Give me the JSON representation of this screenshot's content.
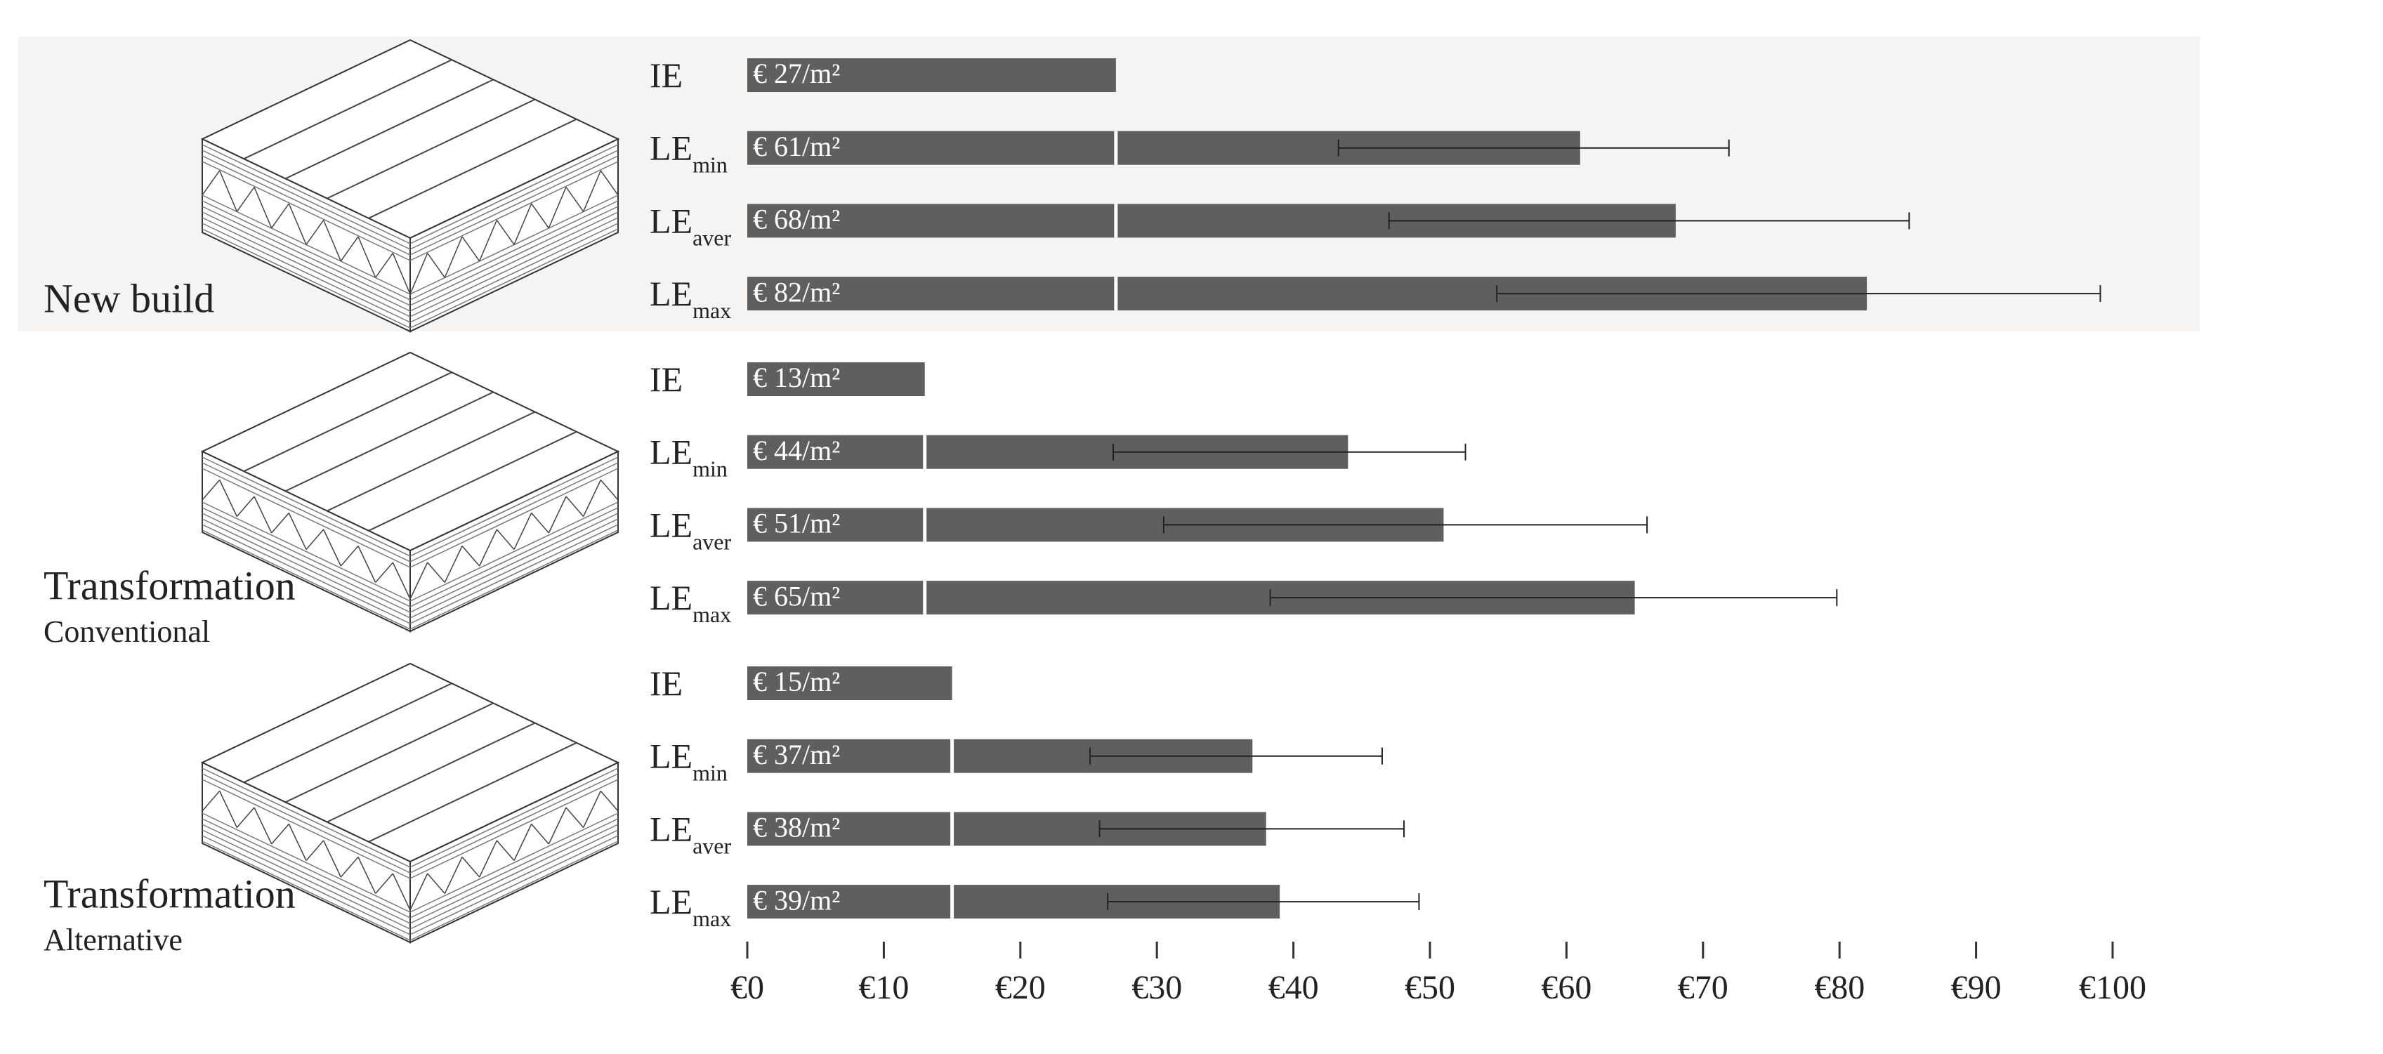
{
  "chart_data": {
    "type": "bar",
    "orientation": "horizontal",
    "color": "#5f5f5f",
    "xlim": [
      0,
      100
    ],
    "xticks": [
      {
        "value": 0,
        "label": "€0"
      },
      {
        "value": 10,
        "label": "€10"
      },
      {
        "value": 20,
        "label": "€20"
      },
      {
        "value": 30,
        "label": "€30"
      },
      {
        "value": 40,
        "label": "€40"
      },
      {
        "value": 50,
        "label": "€50"
      },
      {
        "value": 60,
        "label": "€60"
      },
      {
        "value": 70,
        "label": "€70"
      },
      {
        "value": 80,
        "label": "€80"
      },
      {
        "value": 90,
        "label": "€90"
      },
      {
        "value": 100,
        "label": "€100"
      }
    ],
    "groups": [
      {
        "label": "New build",
        "bars": [
          {
            "label": {
              "base": "IE"
            },
            "value": 27,
            "value_label": "€ 27/m²"
          },
          {
            "label": {
              "base": "LE",
              "sub": "min"
            },
            "value": 61,
            "value_label": "€ 61/m²",
            "error": [
              43.3,
              71.9
            ]
          },
          {
            "label": {
              "base": "LE",
              "sub": "aver"
            },
            "value": 68,
            "value_label": "€ 68/m²",
            "error": [
              47,
              85.1
            ]
          },
          {
            "label": {
              "base": "LE",
              "sub": "max"
            },
            "value": 82,
            "value_label": "€ 82/m²",
            "error": [
              54.9,
              99.1
            ]
          }
        ]
      },
      {
        "label": "Transformation",
        "sublabel": "Conventional",
        "bars": [
          {
            "label": {
              "base": "IE"
            },
            "value": 13,
            "value_label": "€ 13/m²"
          },
          {
            "label": {
              "base": "LE",
              "sub": "min"
            },
            "value": 44,
            "value_label": "€ 44/m²",
            "error": [
              26.8,
              52.6
            ]
          },
          {
            "label": {
              "base": "LE",
              "sub": "aver"
            },
            "value": 51,
            "value_label": "€ 51/m²",
            "error": [
              30.5,
              65.9
            ]
          },
          {
            "label": {
              "base": "LE",
              "sub": "max"
            },
            "value": 65,
            "value_label": "€ 65/m²",
            "error": [
              38.3,
              79.8
            ]
          }
        ]
      },
      {
        "label": "Transformation",
        "sublabel": "Alternative",
        "bars": [
          {
            "label": {
              "base": "IE"
            },
            "value": 15,
            "value_label": "€ 15/m²"
          },
          {
            "label": {
              "base": "LE",
              "sub": "min"
            },
            "value": 37,
            "value_label": "€ 37/m²",
            "error": [
              25.1,
              46.5
            ]
          },
          {
            "label": {
              "base": "LE",
              "sub": "aver"
            },
            "value": 38,
            "value_label": "€ 38/m²",
            "error": [
              25.8,
              48.1
            ]
          },
          {
            "label": {
              "base": "LE",
              "sub": "max"
            },
            "value": 39,
            "value_label": "€ 39/m²",
            "error": [
              26.4,
              49.2
            ]
          }
        ]
      }
    ]
  }
}
